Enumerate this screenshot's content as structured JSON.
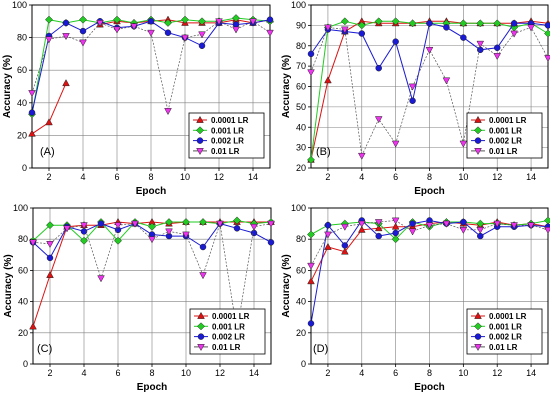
{
  "figure": {
    "background": "#ffffff",
    "grid_color": "#808080"
  },
  "chart_data": [
    {
      "type": "line",
      "panel_label": "(A)",
      "xlabel": "Epoch",
      "ylabel": "Accuracy (%)",
      "xlim": [
        1,
        15
      ],
      "ylim": [
        0,
        100
      ],
      "xticks": [
        "2",
        "4",
        "6",
        "8",
        "10",
        "12",
        "14"
      ],
      "yticks": [
        "0",
        "20",
        "40",
        "60",
        "80",
        "100"
      ],
      "grid": true,
      "legend_position": "lower-right",
      "x": [
        1,
        2,
        3,
        4,
        5,
        6,
        7,
        8,
        9,
        10,
        11,
        12,
        13,
        14,
        15
      ],
      "series": [
        {
          "name": "0.0001 LR",
          "color": "#dd1111",
          "marker": "triangle",
          "values": [
            21,
            28,
            52,
            null,
            88,
            90,
            89,
            90,
            91,
            89,
            89,
            89,
            91,
            89,
            91
          ]
        },
        {
          "name": "0.001 LR",
          "color": "#22cc22",
          "marker": "diamond",
          "values": [
            33,
            91,
            89,
            91,
            89,
            91,
            89,
            91,
            89,
            91,
            90,
            90,
            92,
            91,
            90
          ]
        },
        {
          "name": "0.002 LR",
          "color": "#1a1ad4",
          "marker": "circle",
          "values": [
            34,
            81,
            89,
            84,
            90,
            86,
            87,
            90,
            83,
            80,
            75,
            89,
            88,
            89,
            91
          ]
        },
        {
          "name": "0.01 LR",
          "color": "#ee33ee",
          "marker": "triangle-down",
          "values": [
            46,
            79,
            81,
            77,
            89,
            85,
            87,
            83,
            35,
            80,
            82,
            90,
            85,
            90,
            83
          ]
        }
      ]
    },
    {
      "type": "line",
      "panel_label": "(B)",
      "xlabel": "Epoch",
      "ylabel": "Accuracy (%)",
      "xlim": [
        1,
        15
      ],
      "ylim": [
        20,
        100
      ],
      "xticks": [
        "2",
        "4",
        "6",
        "8",
        "10",
        "12",
        "14"
      ],
      "yticks": [
        "20",
        "30",
        "40",
        "50",
        "60",
        "70",
        "80",
        "90",
        "100"
      ],
      "grid": true,
      "legend_position": "lower-right",
      "x": [
        1,
        2,
        3,
        4,
        5,
        6,
        7,
        8,
        9,
        10,
        11,
        12,
        13,
        14,
        15
      ],
      "series": [
        {
          "name": "0.0001 LR",
          "color": "#dd1111",
          "marker": "triangle",
          "values": [
            24,
            63,
            87,
            92,
            91,
            91,
            91,
            92,
            92,
            91,
            91,
            91,
            91,
            92,
            91
          ]
        },
        {
          "name": "0.001 LR",
          "color": "#22cc22",
          "marker": "diamond",
          "values": [
            24,
            89,
            92,
            90,
            92,
            92,
            91,
            91,
            91,
            91,
            91,
            91,
            89,
            91,
            86
          ]
        },
        {
          "name": "0.002 LR",
          "color": "#1a1ad4",
          "marker": "circle",
          "values": [
            76,
            88,
            87,
            86,
            69,
            82,
            53,
            91,
            89,
            84,
            78,
            79,
            91,
            91,
            90
          ]
        },
        {
          "name": "0.01 LR",
          "color": "#ee33ee",
          "marker": "triangle-down",
          "values": [
            67,
            89,
            88,
            26,
            44,
            32,
            60,
            78,
            63,
            32,
            81,
            75,
            86,
            89,
            74
          ]
        }
      ]
    },
    {
      "type": "line",
      "panel_label": "(C)",
      "xlabel": "Epoch",
      "ylabel": "Accuracy (%)",
      "xlim": [
        1,
        15
      ],
      "ylim": [
        0,
        100
      ],
      "xticks": [
        "2",
        "4",
        "6",
        "8",
        "10",
        "12",
        "14"
      ],
      "yticks": [
        "0",
        "20",
        "40",
        "60",
        "80",
        "100"
      ],
      "grid": true,
      "legend_position": "lower-right",
      "x": [
        1,
        2,
        3,
        4,
        5,
        6,
        7,
        8,
        9,
        10,
        11,
        12,
        13,
        14,
        15
      ],
      "series": [
        {
          "name": "0.0001 LR",
          "color": "#dd1111",
          "marker": "triangle",
          "values": [
            24,
            57,
            88,
            89,
            89,
            91,
            90,
            91,
            90,
            91,
            91,
            91,
            91,
            91,
            91
          ]
        },
        {
          "name": "0.001 LR",
          "color": "#22cc22",
          "marker": "diamond",
          "values": [
            79,
            89,
            89,
            79,
            91,
            79,
            91,
            88,
            91,
            91,
            91,
            90,
            92,
            90,
            91
          ]
        },
        {
          "name": "0.002 LR",
          "color": "#1a1ad4",
          "marker": "circle",
          "values": [
            78,
            68,
            88,
            85,
            90,
            86,
            90,
            83,
            82,
            82,
            75,
            90,
            87,
            84,
            78
          ]
        },
        {
          "name": "0.01 LR",
          "color": "#ee33ee",
          "marker": "triangle-down",
          "values": [
            78,
            77,
            87,
            89,
            55,
            89,
            90,
            80,
            85,
            83,
            57,
            90,
            21,
            88,
            90
          ]
        }
      ]
    },
    {
      "type": "line",
      "panel_label": "(D)",
      "xlabel": "Epoch",
      "ylabel": "Accuracy (%)",
      "xlim": [
        1,
        15
      ],
      "ylim": [
        0,
        100
      ],
      "xticks": [
        "2",
        "4",
        "6",
        "8",
        "10",
        "12",
        "14"
      ],
      "yticks": [
        "0",
        "20",
        "40",
        "60",
        "80",
        "100"
      ],
      "grid": true,
      "legend_position": "lower-right",
      "x": [
        1,
        2,
        3,
        4,
        5,
        6,
        7,
        8,
        9,
        10,
        11,
        12,
        13,
        14,
        15
      ],
      "series": [
        {
          "name": "0.0001 LR",
          "color": "#dd1111",
          "marker": "triangle",
          "values": [
            53,
            75,
            72,
            86,
            87,
            88,
            88,
            90,
            91,
            90,
            89,
            91,
            89,
            90,
            88
          ]
        },
        {
          "name": "0.001 LR",
          "color": "#22cc22",
          "marker": "diamond",
          "values": [
            83,
            89,
            90,
            91,
            90,
            80,
            91,
            88,
            91,
            91,
            90,
            90,
            89,
            90,
            92
          ]
        },
        {
          "name": "0.002 LR",
          "color": "#1a1ad4",
          "marker": "circle",
          "values": [
            26,
            89,
            76,
            92,
            82,
            84,
            90,
            92,
            90,
            91,
            82,
            88,
            88,
            89,
            88
          ]
        },
        {
          "name": "0.01 LR",
          "color": "#ee33ee",
          "marker": "triangle-down",
          "values": [
            63,
            83,
            88,
            90,
            91,
            92,
            85,
            89,
            90,
            86,
            86,
            90,
            89,
            89,
            86
          ]
        }
      ]
    }
  ]
}
